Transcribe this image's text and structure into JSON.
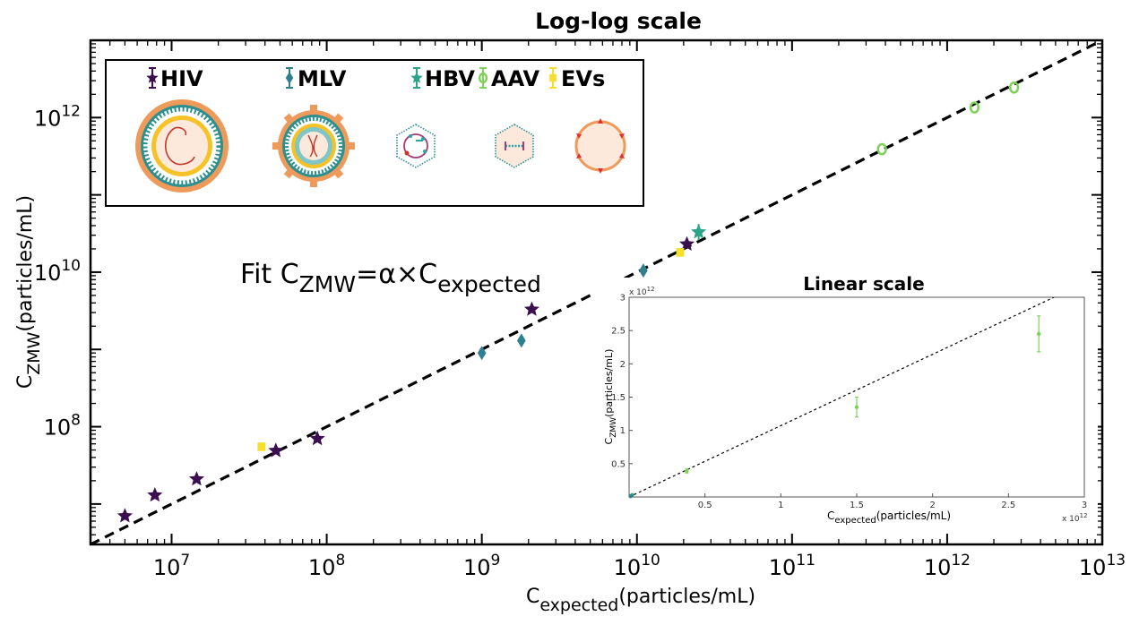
{
  "chart_data": [
    {
      "type": "scatter",
      "title": "Log-log scale",
      "xscale": "log",
      "yscale": "log",
      "xlim": [
        3000000,
        10000000000000
      ],
      "ylim": [
        3000000,
        10000000000000
      ],
      "xlabel": {
        "base": "C",
        "sub": "expected",
        "tail": "(particles/mL)"
      },
      "ylabel": {
        "base": "C",
        "sub": "ZMW",
        "tail": "(particles/mL)"
      },
      "xtick_labels": [
        {
          "value": 10000000,
          "base": "10",
          "exp": "7"
        },
        {
          "value": 100000000,
          "base": "10",
          "exp": "8"
        },
        {
          "value": 1000000000,
          "base": "10",
          "exp": "9"
        },
        {
          "value": 10000000000,
          "base": "10",
          "exp": "10"
        },
        {
          "value": 100000000000,
          "base": "10",
          "exp": "11"
        },
        {
          "value": 1000000000000,
          "base": "10",
          "exp": "12"
        },
        {
          "value": 10000000000000,
          "base": "10",
          "exp": "13"
        }
      ],
      "ytick_labels": [
        {
          "value": 100000000,
          "base": "10",
          "exp": "8"
        },
        {
          "value": 10000000000,
          "base": "10",
          "exp": "10"
        },
        {
          "value": 1000000000000,
          "base": "10",
          "exp": "12"
        }
      ],
      "annotation": {
        "prefix": "Fit C",
        "sub1": "ZMW",
        "middle": "=α×C",
        "sub2": "expected"
      },
      "fit_line": {
        "x": [
          3000000,
          10000000000000
        ],
        "y": [
          3000000,
          10000000000000
        ],
        "style": "dashed",
        "color": "#000000"
      },
      "legend": {
        "placement": "top-left"
      },
      "series": [
        {
          "name": "HIV",
          "marker": "star",
          "color": "#3b0f4f",
          "points": [
            [
              5000000,
              7000000
            ],
            [
              7800000,
              13000000
            ],
            [
              14500000,
              21000000
            ],
            [
              47000000,
              49000000
            ],
            [
              87000000,
              70000000
            ],
            [
              2100000000,
              3300000000
            ],
            [
              21000000000,
              23000000000
            ]
          ]
        },
        {
          "name": "MLV",
          "marker": "diamond",
          "color": "#2e7f8f",
          "points": [
            [
              1000000000,
              900000000
            ],
            [
              1800000000,
              1300000000
            ],
            [
              6000000000,
              5300000000
            ],
            [
              11000000000,
              10500000000
            ]
          ]
        },
        {
          "name": "HBV",
          "marker": "star",
          "color": "#2aa387",
          "points": [
            [
              25000000000,
              33000000000
            ]
          ]
        },
        {
          "name": "AAV",
          "marker": "circle-open",
          "color": "#7fd15a",
          "points": [
            [
              380000000000,
              390000000000
            ],
            [
              1500000000000,
              1350000000000
            ],
            [
              2700000000000,
              2450000000000
            ]
          ]
        },
        {
          "name": "EVs",
          "marker": "square",
          "color": "#f6df2a",
          "points": [
            [
              38000000,
              55000000
            ],
            [
              5800000000,
              7300000000
            ],
            [
              7300000000,
              7000000000
            ],
            [
              19000000000,
              18000000000
            ]
          ]
        }
      ]
    },
    {
      "type": "scatter",
      "title": "Linear scale",
      "xlim": [
        0,
        3
      ],
      "ylim": [
        0,
        3
      ],
      "multiplier": "x 10",
      "multiplier_exp": "12",
      "xlabel": {
        "base": "C",
        "sub": "expected",
        "tail": "(particles/mL)"
      },
      "ylabel": {
        "base": "C",
        "sub": "ZMW",
        "tail": "(particles/mL)"
      },
      "xticks": [
        "0.5",
        "1",
        "1.5",
        "2",
        "2.5",
        "3"
      ],
      "yticks": [
        "0.5",
        "1",
        "1.5",
        "2",
        "2.5",
        "3"
      ],
      "fit_line": {
        "x": [
          0,
          2.8
        ],
        "y": [
          0,
          3.0
        ],
        "style": "dotted",
        "color": "#000000"
      },
      "points": [
        {
          "x": 0.38,
          "y": 0.39,
          "err": 0.03,
          "color": "#7fd15a"
        },
        {
          "x": 1.5,
          "y": 1.35,
          "err": 0.15,
          "color": "#7fd15a"
        },
        {
          "x": 2.7,
          "y": 2.45,
          "err": 0.27,
          "color": "#7fd15a"
        },
        {
          "x": 0.02,
          "y": 0.03,
          "err": 0.0,
          "color": "#2aa387"
        },
        {
          "x": 0.01,
          "y": 0.01,
          "err": 0.0,
          "color": "#2e7f8f"
        }
      ]
    }
  ]
}
